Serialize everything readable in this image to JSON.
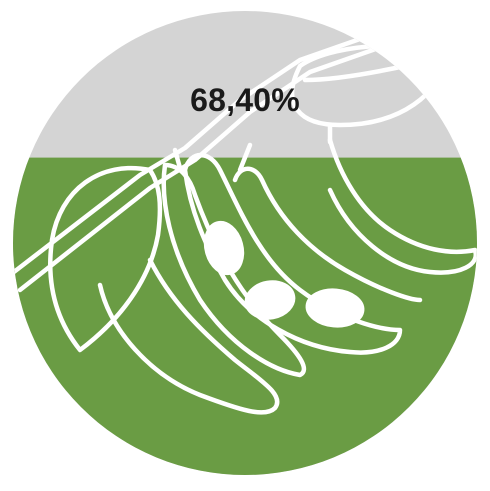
{
  "infographic": {
    "percentage_label": "68,40%",
    "fill_fraction": 0.684,
    "icon": "soybean-plant-icon",
    "colors": {
      "fill": "#6a9c44",
      "unfilled": "#d4d4d4",
      "outline": "#ffffff"
    }
  }
}
